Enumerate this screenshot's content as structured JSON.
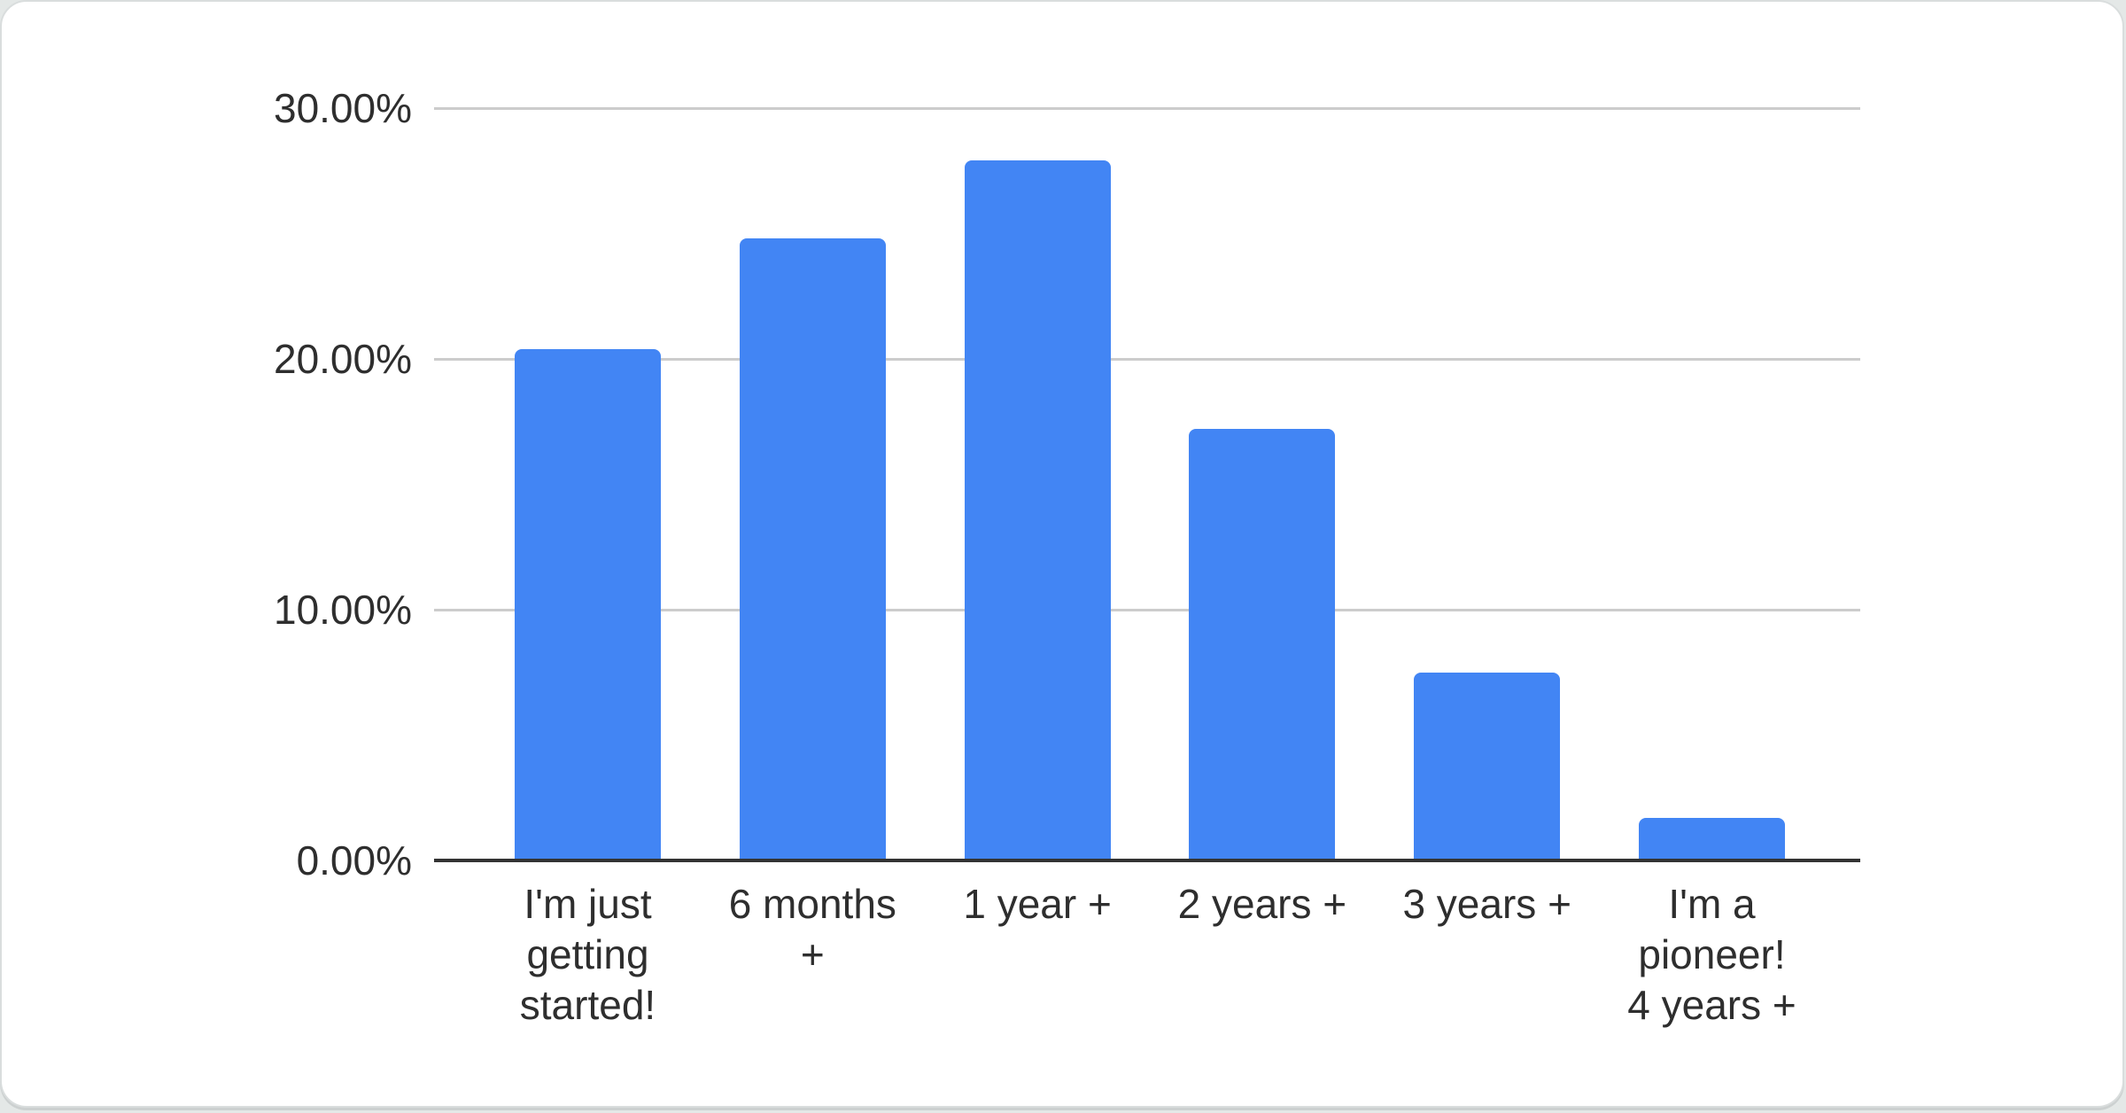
{
  "page": {
    "background_color": "#e4e8e7",
    "card_background": "#ffffff",
    "card_border_color": "#d9dddd"
  },
  "chart_data": {
    "type": "bar",
    "title": "",
    "xlabel": "",
    "ylabel": "",
    "categories": [
      "I'm just getting started!",
      "6 months +",
      "1 year +",
      "2 years +",
      "3 years +",
      "I'm a pioneer! 4 years +"
    ],
    "category_label_lines": [
      [
        "I'm just",
        "getting",
        "started!"
      ],
      [
        "6 months",
        "+"
      ],
      [
        "1 year +"
      ],
      [
        "2 years +"
      ],
      [
        "3 years +"
      ],
      [
        "I'm a",
        "pioneer!",
        "4 years +"
      ]
    ],
    "values": [
      20.4,
      24.8,
      27.9,
      17.2,
      7.5,
      1.7
    ],
    "value_unit": "%",
    "y_ticks": [
      "30.00%",
      "20.00%",
      "10.00%",
      "0.00%"
    ],
    "y_tick_values": [
      30,
      20,
      10,
      0
    ],
    "ylim": [
      0,
      30
    ],
    "grid": true,
    "legend_position": "none",
    "bar_color": "#4285f4",
    "gridline_color": "#cccccc",
    "axis_line_color": "#333333",
    "label_color": "#2e2e2e"
  }
}
